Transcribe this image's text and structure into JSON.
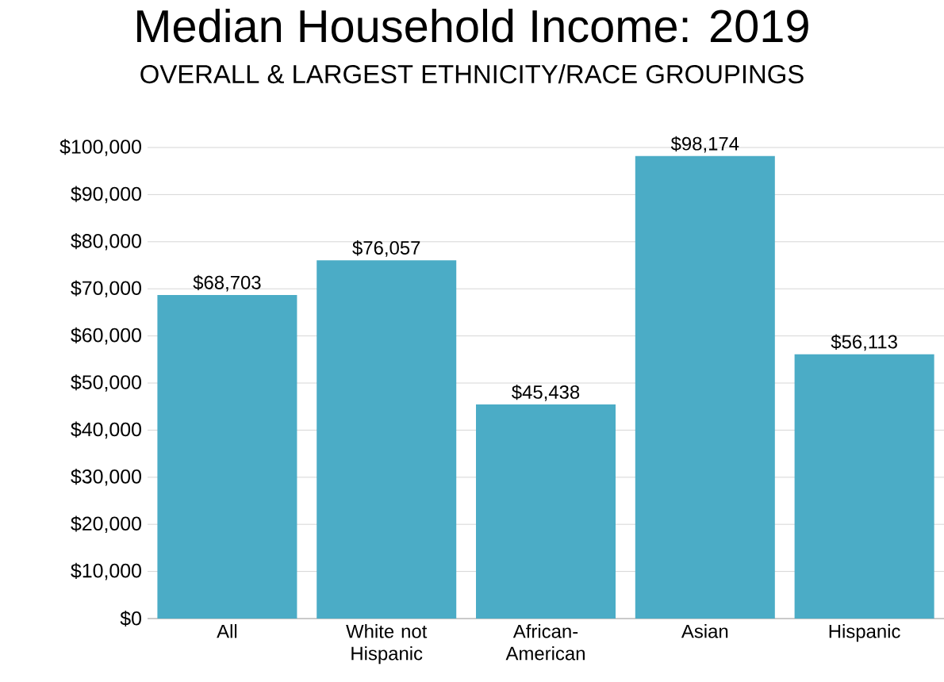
{
  "chart_data": {
    "type": "bar",
    "title": "Median Household Income: 2019",
    "subtitle": "OVERALL & LARGEST ETHNICITY/RACE GROUPINGS",
    "categories": [
      "All",
      "White not Hispanic",
      "African-American",
      "Asian",
      "Hispanic"
    ],
    "values": [
      68703,
      76057,
      45438,
      98174,
      56113
    ],
    "value_labels": [
      "$68,703",
      "$76,057",
      "$45,438",
      "$98,174",
      "$56,113"
    ],
    "color": "#4bacc6",
    "ylim": [
      0,
      100000
    ],
    "yticks": [
      {
        "value": 0,
        "label": "$0"
      },
      {
        "value": 10000,
        "label": "$10,000"
      },
      {
        "value": 20000,
        "label": "$20,000"
      },
      {
        "value": 30000,
        "label": "$30,000"
      },
      {
        "value": 40000,
        "label": "$40,000"
      },
      {
        "value": 50000,
        "label": "$50,000"
      },
      {
        "value": 60000,
        "label": "$60,000"
      },
      {
        "value": 70000,
        "label": "$70,000"
      },
      {
        "value": 80000,
        "label": "$80,000"
      },
      {
        "value": 90000,
        "label": "$90,000"
      },
      {
        "value": 100000,
        "label": "$100,000"
      }
    ],
    "grid": "y"
  }
}
